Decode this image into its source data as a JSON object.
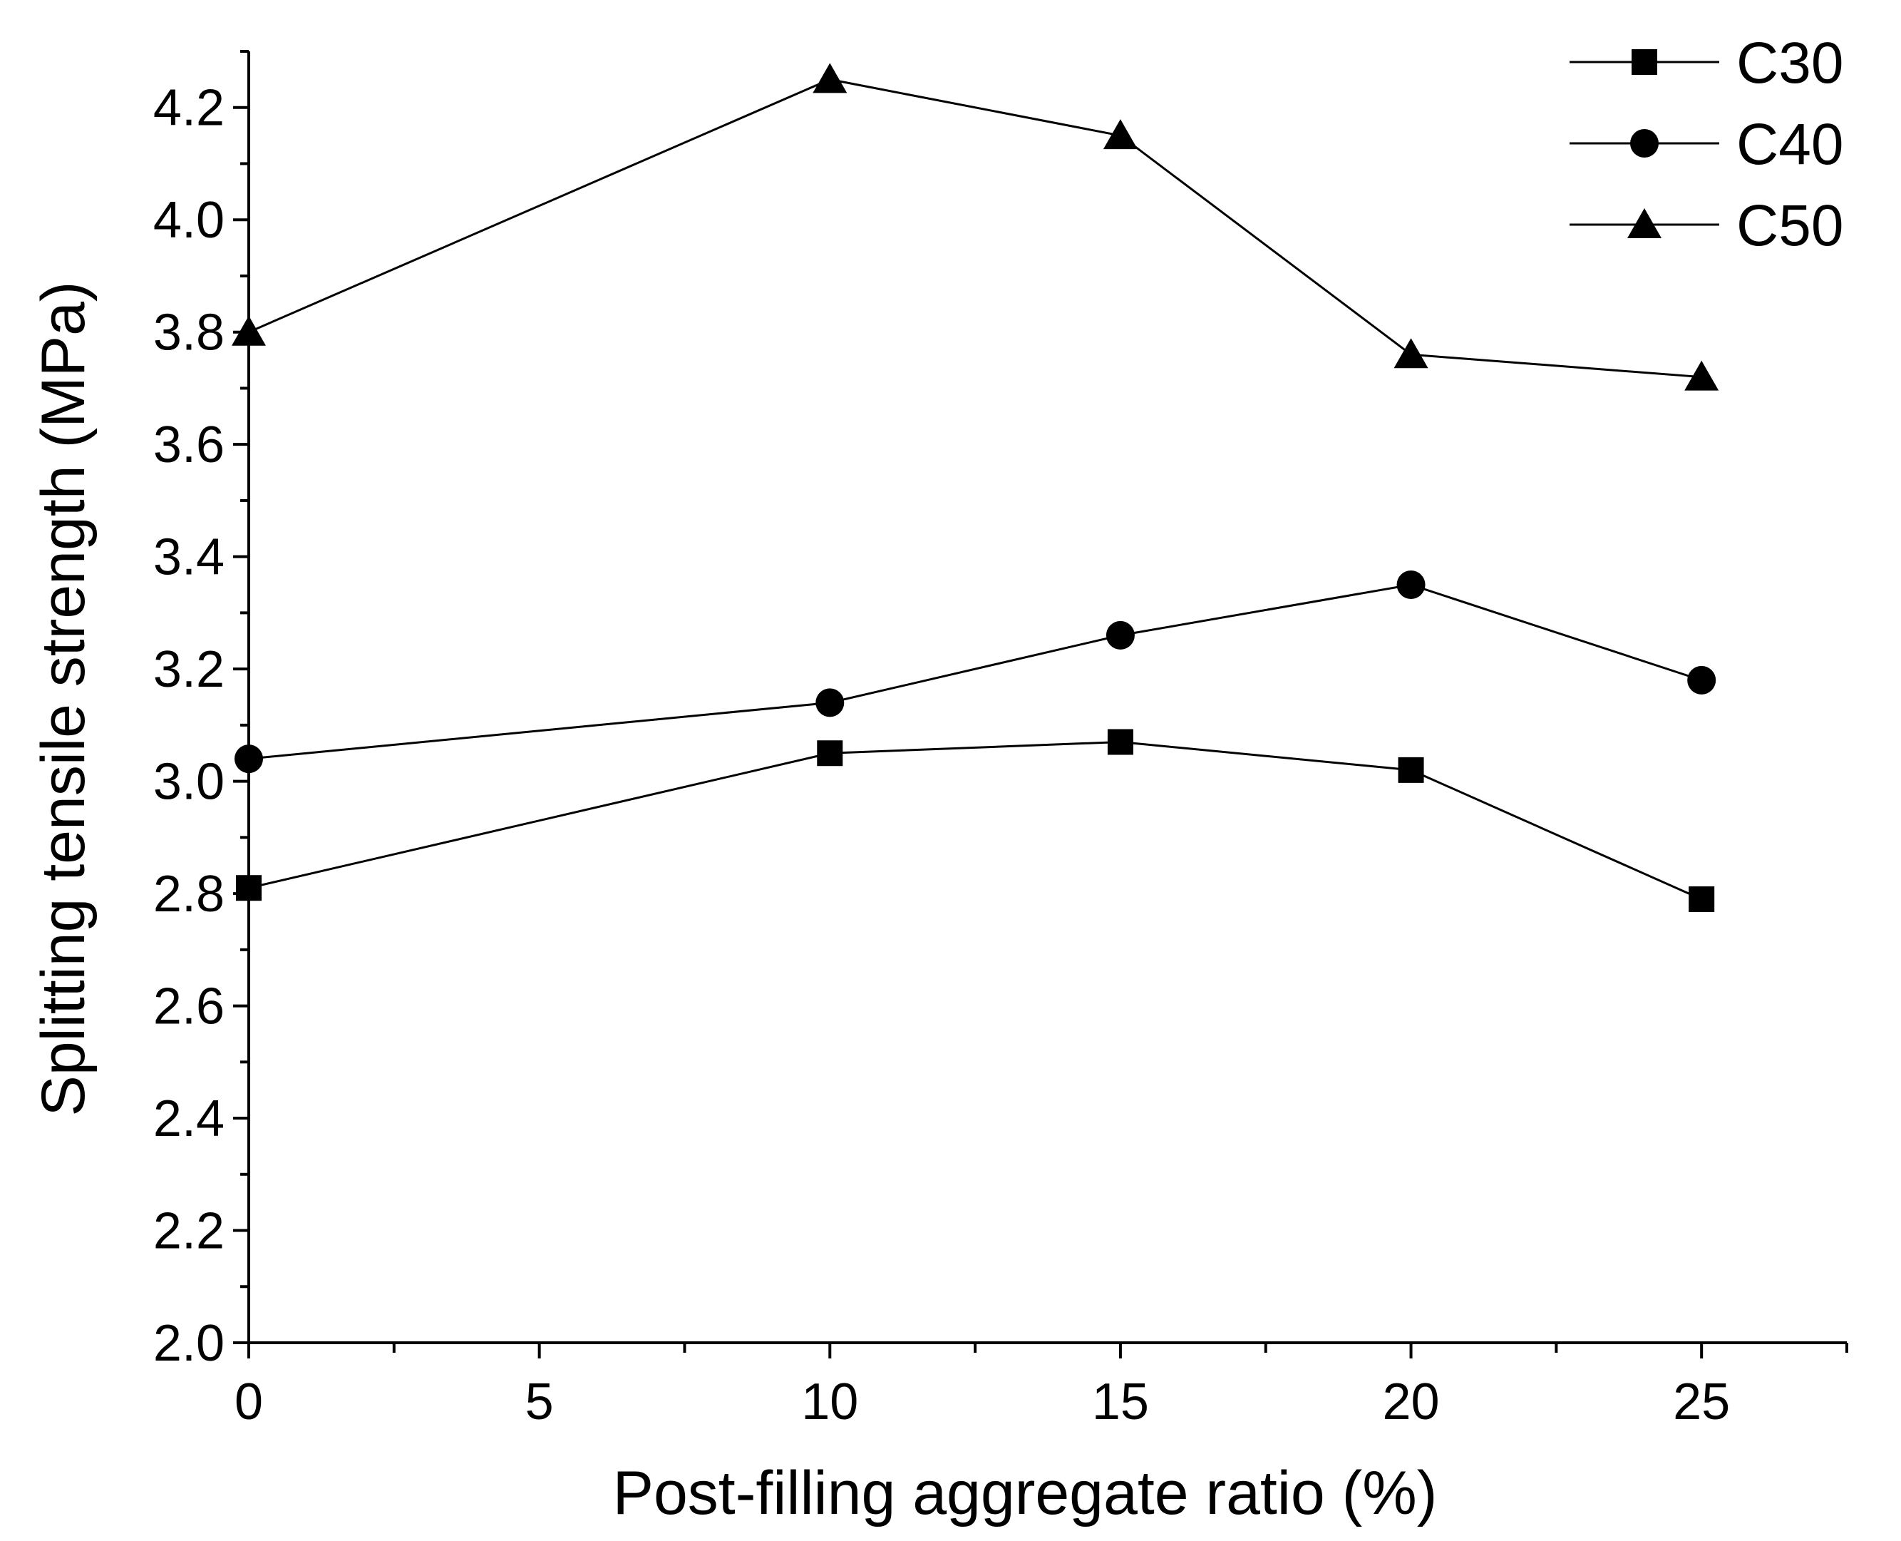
{
  "chart_data": {
    "type": "line",
    "title": "",
    "xlabel": "Post-filling aggregate ratio (%)",
    "ylabel": "Splitting tensile strength (MPa)",
    "xlim": [
      0,
      27.5
    ],
    "ylim": [
      2.0,
      4.3
    ],
    "x_ticks": [
      0,
      5,
      10,
      15,
      20,
      25
    ],
    "x_tick_labels": [
      "0",
      "5",
      "10",
      "15",
      "20",
      "25"
    ],
    "x_minor_ticks": [
      2.5,
      7.5,
      12.5,
      17.5,
      22.5,
      27.5
    ],
    "y_ticks": [
      2.0,
      2.2,
      2.4,
      2.6,
      2.8,
      3.0,
      3.2,
      3.4,
      3.6,
      3.8,
      4.0,
      4.2
    ],
    "y_tick_labels": [
      "2.0",
      "2.2",
      "2.4",
      "2.6",
      "2.8",
      "3.0",
      "3.2",
      "3.4",
      "3.6",
      "3.8",
      "4.0",
      "4.2"
    ],
    "y_minor_ticks": [
      2.1,
      2.3,
      2.5,
      2.7,
      2.9,
      3.1,
      3.3,
      3.5,
      3.7,
      3.9,
      4.1,
      4.3
    ],
    "grid": false,
    "legend_position": "top-right",
    "x": [
      0,
      10,
      15,
      20,
      25
    ],
    "series": [
      {
        "name": "C30",
        "marker": "square",
        "values": [
          2.81,
          3.05,
          3.07,
          3.02,
          2.79
        ]
      },
      {
        "name": "C40",
        "marker": "circle",
        "values": [
          3.04,
          3.14,
          3.26,
          3.35,
          3.18
        ]
      },
      {
        "name": "C50",
        "marker": "triangle",
        "values": [
          3.8,
          4.25,
          4.15,
          3.76,
          3.72
        ]
      }
    ],
    "colors": {
      "line": "#000000",
      "marker": "#000000",
      "axis": "#000000"
    }
  }
}
